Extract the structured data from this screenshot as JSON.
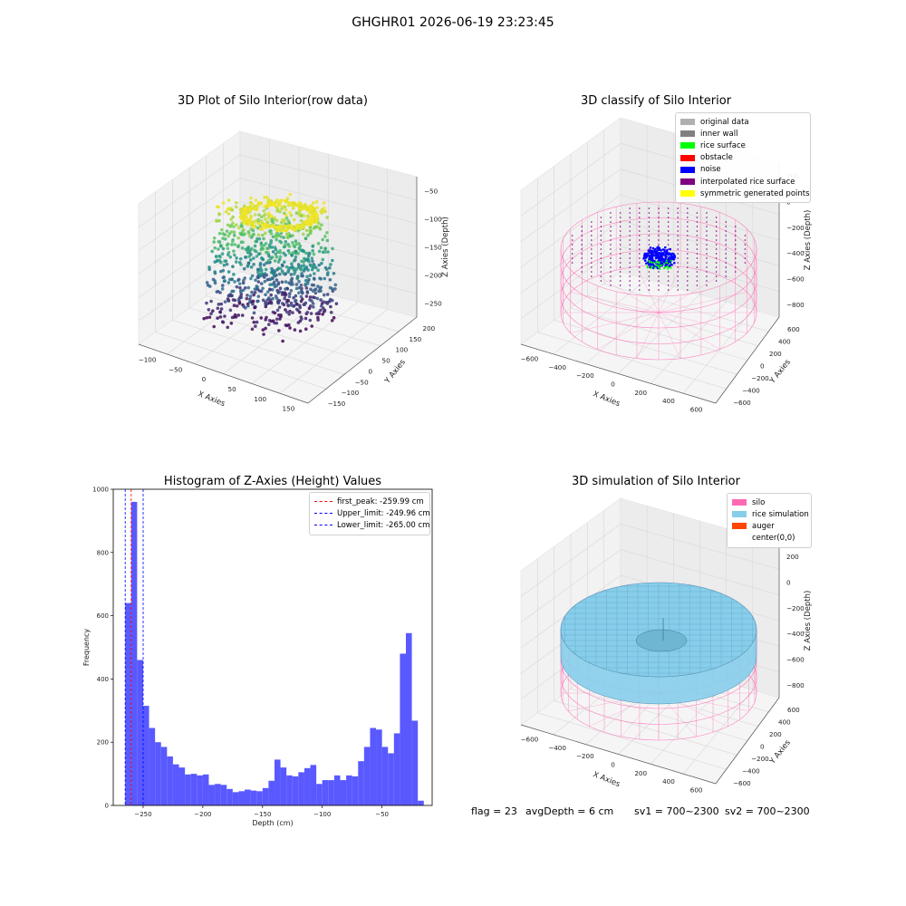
{
  "suptitle": "GHGHR01 2026-06-19 23:23:45",
  "panels": {
    "raw": {
      "title": "3D Plot of Silo Interior(row data)",
      "xlabel": "X Axies",
      "ylabel": "Y Axies",
      "zlabel": "Z Axies (Depth)",
      "xticks": [
        "−100",
        "−50",
        "0",
        "50",
        "100",
        "150"
      ],
      "yticks": [
        "−150",
        "−100",
        "−50",
        "0",
        "50",
        "100",
        "150",
        "200"
      ],
      "zticks": [
        "−50",
        "−100",
        "−150",
        "−200",
        "−250"
      ]
    },
    "classify": {
      "title": "3D classify of Silo Interior",
      "xlabel": "X Axies",
      "ylabel": "Y Axies",
      "zlabel": "Z Axies (Depth)",
      "xticks": [
        "−600",
        "−400",
        "−200",
        "0",
        "200",
        "400",
        "600"
      ],
      "yticks": [
        "−600",
        "−400",
        "−200",
        "0",
        "200",
        "400",
        "600"
      ],
      "zticks": [
        "200",
        "0",
        "−200",
        "−400",
        "−600",
        "−800"
      ],
      "legend": [
        {
          "label": "original data",
          "color": "#b0b0b0"
        },
        {
          "label": "inner wall",
          "color": "#808080"
        },
        {
          "label": "rice surface",
          "color": "#00ff00"
        },
        {
          "label": "obstacle",
          "color": "#ff0000"
        },
        {
          "label": "noise",
          "color": "#0000ff"
        },
        {
          "label": "interpolated rice surface",
          "color": "#800080"
        },
        {
          "label": "symmetric generated points",
          "color": "#ffff00"
        }
      ]
    },
    "simulation": {
      "title": "3D simulation of Silo Interior",
      "xlabel": "X Axies",
      "ylabel": "Y Axies",
      "zlabel": "Z Axies (Depth)",
      "xticks": [
        "−600",
        "−400",
        "−200",
        "0",
        "200",
        "400",
        "600"
      ],
      "yticks": [
        "−600",
        "−400",
        "−200",
        "0",
        "200",
        "400",
        "600"
      ],
      "zticks": [
        "200",
        "0",
        "−200",
        "−400",
        "−600",
        "−800"
      ],
      "legend": [
        {
          "label": "silo",
          "color": "#ff69b4"
        },
        {
          "label": "rice simulation",
          "color": "#87ceeb"
        },
        {
          "label": "auger",
          "color": "#ff4500"
        },
        {
          "label": "center(0,0)",
          "color": "#ffffff"
        }
      ]
    },
    "footer": {
      "flag": "flag = 23",
      "avgdepth": "avgDepth = 6 cm",
      "sv1": "sv1 = 700~2300",
      "sv2": "sv2 = 700~2300"
    }
  },
  "chart_data": [
    {
      "type": "bar",
      "title": "Histogram of Z-Axies (Height) Values",
      "xlabel": "Depth (cm)",
      "ylabel": "Frequency",
      "xlim": [
        -275,
        -8
      ],
      "ylim": [
        0,
        1000
      ],
      "xticks": [
        -250,
        -200,
        -150,
        -100,
        -50
      ],
      "xtick_labels": [
        "−250",
        "−200",
        "−150",
        "−100",
        "−50"
      ],
      "yticks": [
        0,
        200,
        400,
        600,
        800,
        1000
      ],
      "bar_color": "#5050ff",
      "bin_start": -265.0,
      "bin_width": 5.0,
      "values": [
        640,
        960,
        460,
        315,
        245,
        200,
        185,
        155,
        130,
        120,
        98,
        100,
        95,
        98,
        65,
        68,
        65,
        52,
        42,
        45,
        50,
        47,
        45,
        55,
        78,
        145,
        120,
        95,
        92,
        105,
        118,
        128,
        68,
        80,
        80,
        95,
        80,
        95,
        92,
        140,
        185,
        245,
        240,
        185,
        165,
        228,
        480,
        545,
        268,
        15
      ],
      "vlines": [
        {
          "x": -259.99,
          "color": "#ff0000",
          "label": "first_peak: -259.99 cm"
        },
        {
          "x": -249.96,
          "color": "#0000ff",
          "label": "Upper_limit: -249.96 cm"
        },
        {
          "x": -265.0,
          "color": "#0000ff",
          "label": "Lower_limit: -265.00 cm"
        }
      ],
      "legend_position": "top-right"
    }
  ]
}
